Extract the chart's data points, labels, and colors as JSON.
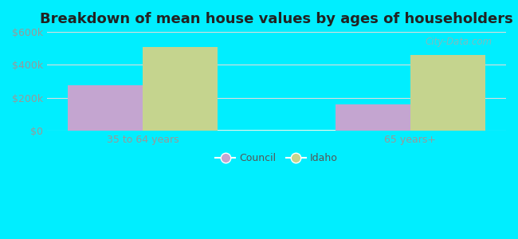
{
  "title": "Breakdown of mean house values by ages of householders",
  "categories": [
    "35 to 64 years",
    "65 years+"
  ],
  "council_values": [
    275000,
    160000
  ],
  "idaho_values": [
    510000,
    460000
  ],
  "council_color": "#c4a5d0",
  "idaho_color": "#c5d48e",
  "ylim": [
    0,
    600000
  ],
  "yticks": [
    0,
    200000,
    400000,
    600000
  ],
  "ytick_labels": [
    "$0",
    "$200k",
    "$400k",
    "$600k"
  ],
  "background_outer": "#00eeff",
  "legend_labels": [
    "Council",
    "Idaho"
  ],
  "bar_width": 0.28,
  "title_fontsize": 13,
  "tick_fontsize": 9,
  "legend_fontsize": 9,
  "tick_color": "#999999",
  "grid_color": "#dddddd"
}
